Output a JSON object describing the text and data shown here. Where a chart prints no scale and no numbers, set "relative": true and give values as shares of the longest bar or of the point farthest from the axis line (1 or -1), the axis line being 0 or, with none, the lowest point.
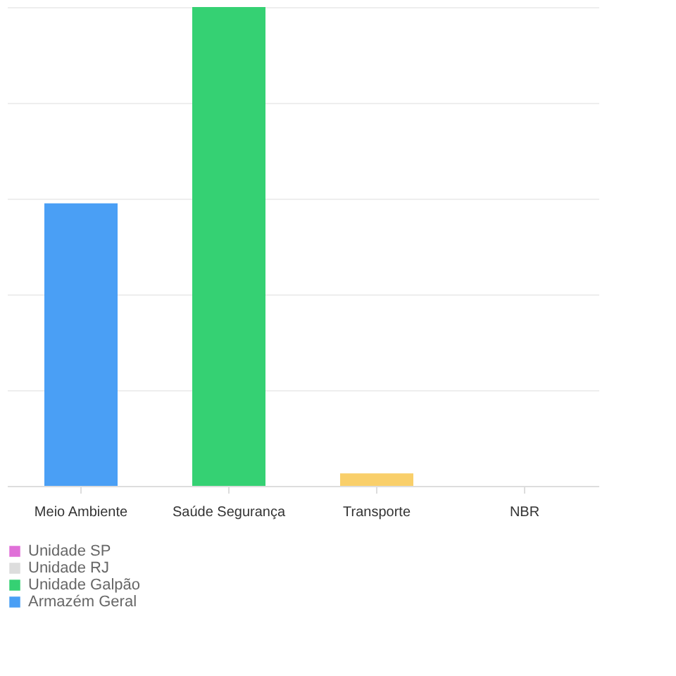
{
  "chart_data": {
    "type": "bar",
    "relative": true,
    "grid": "y",
    "legend": "bottom left",
    "categories": [
      "Meio Ambiente",
      "Saúde Segurança",
      "Transporte",
      "NBR"
    ],
    "series": [
      {
        "name": "Unidade SP",
        "color": "#e070d8",
        "values": [
          0,
          0,
          0,
          0
        ]
      },
      {
        "name": "Unidade RJ",
        "color": "#dddddd",
        "values": [
          0,
          0,
          0,
          0
        ]
      },
      {
        "name": "Unidade Galpão",
        "color": "#35d173",
        "values": [
          0,
          1,
          0,
          0
        ]
      },
      {
        "name": "Armazém Geral",
        "color": "#4a9ff5",
        "values": [
          0.59,
          0,
          0,
          0
        ]
      },
      {
        "color": "#f9cf6a",
        "values": [
          0,
          0,
          0.026,
          0
        ]
      }
    ]
  }
}
